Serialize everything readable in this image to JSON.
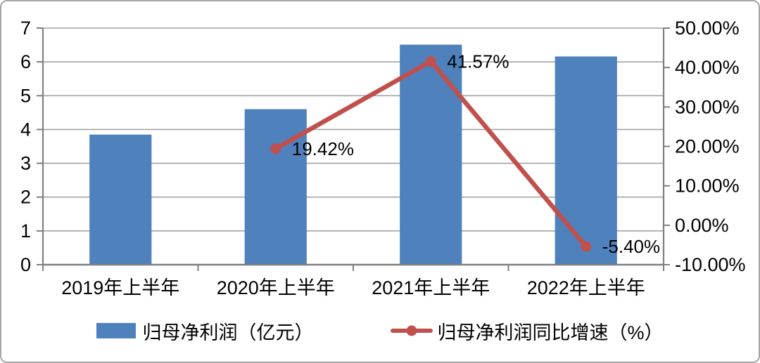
{
  "chart_data": {
    "type": "combo-bar-line",
    "categories": [
      "2019年上半年",
      "2020年上半年",
      "2021年上半年",
      "2022年上半年"
    ],
    "series": [
      {
        "name": "归母净利润（亿元）",
        "type": "bar",
        "axis": "left",
        "color": "#4F81BD",
        "values": [
          3.85,
          4.6,
          6.51,
          6.16
        ]
      },
      {
        "name": "归母净利润同比增速（%）",
        "type": "line",
        "axis": "right",
        "color": "#C0504D",
        "values": [
          null,
          19.42,
          41.57,
          -5.4
        ],
        "data_labels": [
          null,
          "19.42%",
          "41.57%",
          "-5.40%"
        ]
      }
    ],
    "left_axis": {
      "min": 0,
      "max": 7,
      "step": 1,
      "tick_labels": [
        "0",
        "1",
        "2",
        "3",
        "4",
        "5",
        "6",
        "7"
      ]
    },
    "right_axis": {
      "min": -10,
      "max": 50,
      "step": 10,
      "tick_labels": [
        "-10.00%",
        "0.00%",
        "10.00%",
        "20.00%",
        "30.00%",
        "40.00%",
        "50.00%"
      ]
    },
    "grid": true,
    "legend_position": "bottom",
    "title": ""
  },
  "legend": {
    "items": [
      {
        "label": "归母净利润（亿元）",
        "color": "#4F81BD",
        "marker": "bar"
      },
      {
        "label": "归母净利润同比增速（%）",
        "color": "#C0504D",
        "marker": "line"
      }
    ]
  },
  "colors": {
    "bar": "#4F81BD",
    "line": "#C0504D",
    "gridline": "#a3a3a3",
    "axis": "#7f7f7f",
    "text": "#000000",
    "frame_border": "#a6a6a6",
    "background": "#ffffff"
  }
}
